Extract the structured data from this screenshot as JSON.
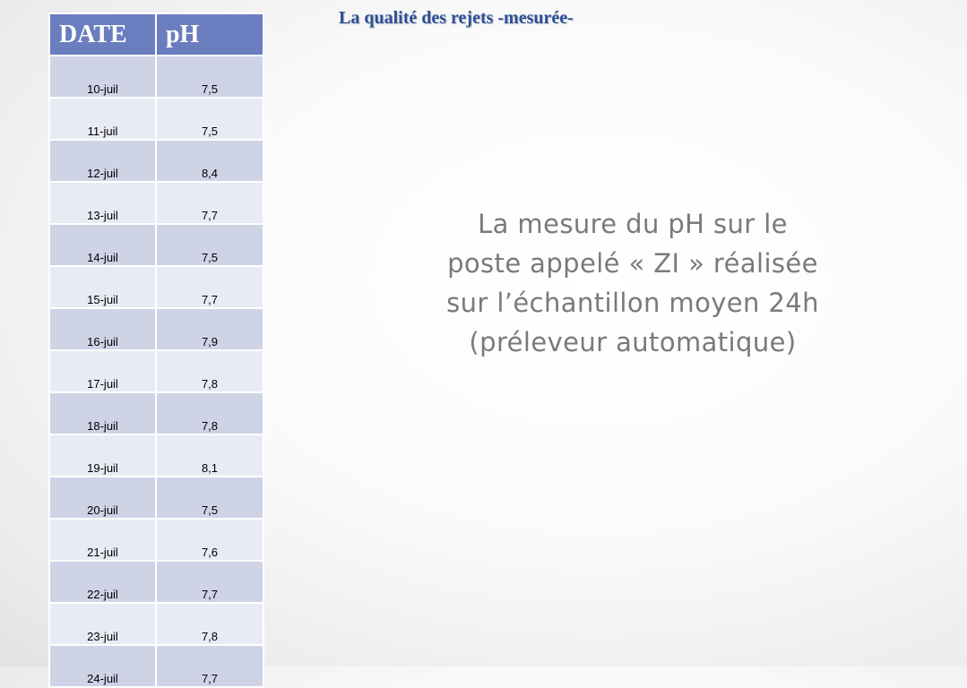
{
  "title": "La qualité des rejets -mesurée-",
  "table": {
    "headers": {
      "date": "DATE",
      "ph": "pH"
    },
    "rows": [
      {
        "date": "10-juil",
        "ph": "7,5"
      },
      {
        "date": "11-juil",
        "ph": "7,5"
      },
      {
        "date": "12-juil",
        "ph": "8,4"
      },
      {
        "date": "13-juil",
        "ph": "7,7"
      },
      {
        "date": "14-juil",
        "ph": "7,5"
      },
      {
        "date": "15-juil",
        "ph": "7,7"
      },
      {
        "date": "16-juil",
        "ph": "7,9"
      },
      {
        "date": "17-juil",
        "ph": "7,8"
      },
      {
        "date": "18-juil",
        "ph": "7,8"
      },
      {
        "date": "19-juil",
        "ph": "8,1"
      },
      {
        "date": "20-juil",
        "ph": "7,5"
      },
      {
        "date": "21-juil",
        "ph": "7,6"
      },
      {
        "date": "22-juil",
        "ph": "7,7"
      },
      {
        "date": "23-juil",
        "ph": "7,8"
      },
      {
        "date": "24-juil",
        "ph": "7,7"
      }
    ]
  },
  "description": "La mesure du pH sur le\nposte appelé « ZI » réalisée\nsur l’échantillon moyen 24h\n(préleveur automatique)",
  "colors": {
    "header_bg": "#6a7dbe",
    "row_dark": "#cfd3e6",
    "row_light": "#e9ebf4",
    "title": "#2c4f9a",
    "description": "#7a7a7a"
  }
}
